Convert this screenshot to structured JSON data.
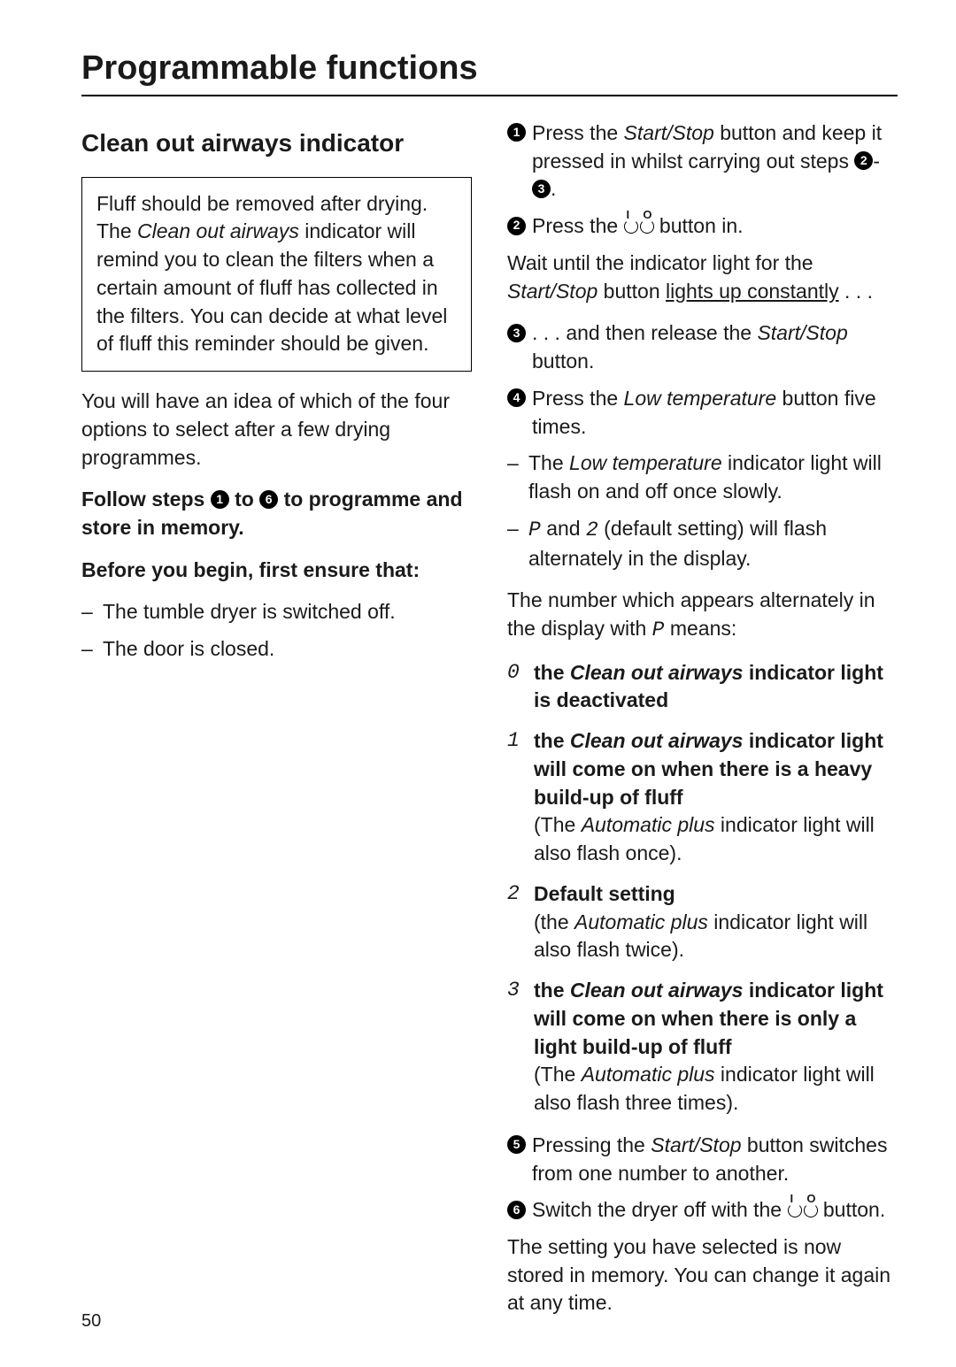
{
  "page": {
    "title": "Programmable functions",
    "number": "50"
  },
  "left": {
    "heading": "Clean out airways indicator",
    "note_t1": "Fluff should be removed after drying. The ",
    "note_em": "Clean out airways",
    "note_t2": " indicator will remind you to clean the filters when a certain amount of fluff has collected in the filters. You can decide at what level of fluff this reminder should be given.",
    "para1": "You will have an idea of which of the four options to select after a few drying programmes.",
    "follow_a": "Follow steps ",
    "follow_b": " to ",
    "follow_c": " to programme and store in memory.",
    "follow_n1": "1",
    "follow_n6": "6",
    "before": "Before you begin, first ensure that:",
    "pre1": "The tumble dryer is switched off.",
    "pre2": "The door is closed."
  },
  "right": {
    "s1": {
      "n": "1",
      "a": "Press the ",
      "em": "Start/Stop",
      "b": " button and keep it pressed in whilst carrying out steps ",
      "r2": "2",
      "dash": "-",
      "r3": "3",
      "dot": "."
    },
    "s2": {
      "n": "2",
      "a": "Press the ",
      "b": " button in."
    },
    "wait_a": "Wait until the indicator light for the ",
    "wait_em": "Start/Stop",
    "wait_b": " button ",
    "wait_u": "lights up constantly",
    "wait_c": " . . .",
    "s3": {
      "n": "3",
      "a": ". . . and then release the ",
      "em": "Start/Stop",
      "b": " button."
    },
    "s4": {
      "n": "4",
      "a": "Press the ",
      "em": "Low temperature",
      "b": " button five times."
    },
    "d1_a": "The ",
    "d1_em": "Low temperature",
    "d1_b": " indicator light will flash on and off once slowly.",
    "d2_p": "P",
    "d2_mid": " and ",
    "d2_2": "2",
    "d2_tail": " (default setting) will flash alternately in the display.",
    "numline_a": "The number which appears alternately in the display with ",
    "numline_p": "P",
    "numline_b": " means:",
    "opt0_k": "0",
    "opt0_a": "the ",
    "opt0_em": "Clean out airways",
    "opt0_b": " indicator light is deactivated",
    "opt1_k": "1",
    "opt1_a": "the ",
    "opt1_em": "Clean out airways",
    "opt1_b": " indicator light will come on when there is a heavy build-up of fluff",
    "opt1_sub_a": "(The ",
    "opt1_sub_em": "Automatic plus",
    "opt1_sub_b": " indicator light will also flash once).",
    "opt2_k": "2",
    "opt2_head": "Default setting",
    "opt2_sub_a": "(the ",
    "opt2_sub_em": "Automatic plus",
    "opt2_sub_b": " indicator light will also flash twice).",
    "opt3_k": "3",
    "opt3_a": "the ",
    "opt3_em": "Clean out airways",
    "opt3_b": " indicator light will come on when there is only a light build-up of fluff",
    "opt3_sub_a": "(The ",
    "opt3_sub_em": "Automatic plus",
    "opt3_sub_b": " indicator light will also flash three times).",
    "s5": {
      "n": "5",
      "a": "Pressing the ",
      "em": "Start/Stop",
      "b": " button switches from one number to another."
    },
    "s6": {
      "n": "6",
      "a": "Switch the dryer off with the ",
      "b": " button."
    },
    "closing": "The setting you have selected is now stored in memory. You can change it again at any time."
  },
  "io_labels": {
    "l": "I",
    "r": "O"
  }
}
